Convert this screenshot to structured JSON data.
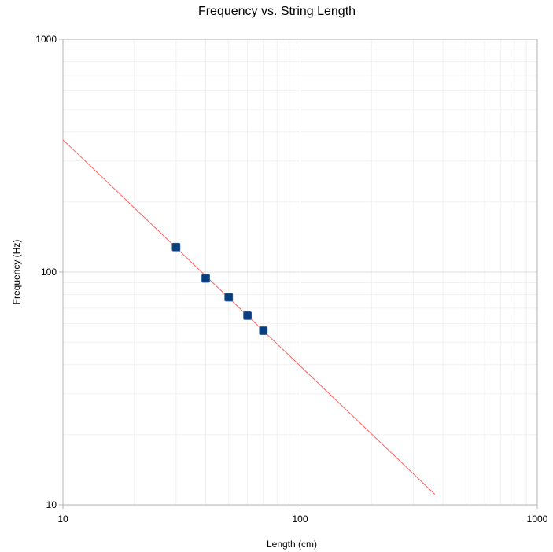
{
  "chart_data": {
    "type": "scatter",
    "title": "Frequency vs. String Length",
    "xlabel": "Length (cm)",
    "ylabel": "Frequency (Hz)",
    "xscale": "log",
    "yscale": "log",
    "xlim": [
      10,
      1000
    ],
    "ylim": [
      10,
      1000
    ],
    "xticks": [
      "10",
      "100",
      "1000"
    ],
    "yticks": [
      "10",
      "100",
      "1000"
    ],
    "grid": true,
    "legend": "none",
    "series": [
      {
        "type": "scatter",
        "color": "#0a3f7f",
        "marker": "square",
        "x": [
          30,
          40,
          50,
          60,
          70
        ],
        "y": [
          128,
          94,
          78,
          65,
          56
        ]
      },
      {
        "type": "line",
        "color": "#ff6060",
        "x": [
          10,
          370
        ],
        "y": [
          370,
          11.1
        ]
      }
    ]
  }
}
